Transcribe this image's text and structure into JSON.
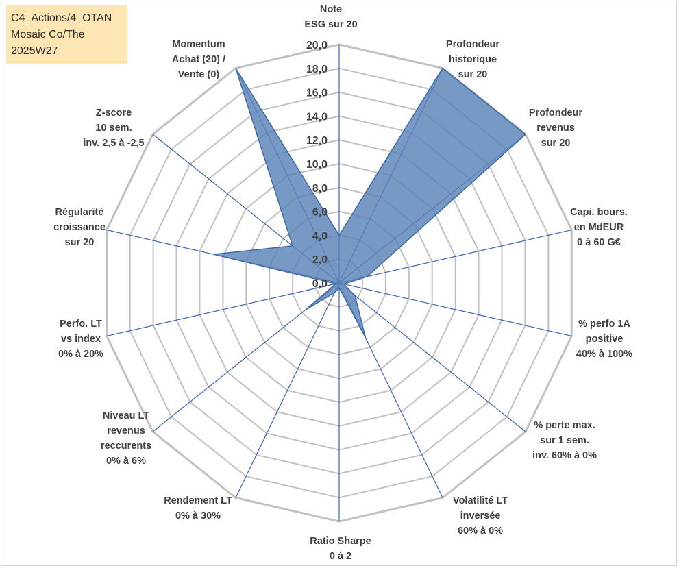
{
  "title_lines": [
    "C4_Actions/4_OTAN",
    "Mosaic Co/The",
    "2025W27"
  ],
  "colors": {
    "fill": "#5b83b8",
    "stroke": "#3e69a8",
    "grid": "#c0c0c0",
    "spoke": "#3864b4",
    "title_bg": "#fde6b4"
  },
  "chart_data": {
    "type": "radar",
    "r_range": [
      0,
      20
    ],
    "r_ticks": [
      "0,0",
      "2,0",
      "4,0",
      "6,0",
      "8,0",
      "10,0",
      "12,0",
      "14,0",
      "16,0",
      "18,0",
      "20,0"
    ],
    "grid": true,
    "axes": [
      {
        "lines": [
          "Note",
          "ESG sur 20"
        ]
      },
      {
        "lines": [
          "Profondeur",
          "historique",
          "sur 20"
        ]
      },
      {
        "lines": [
          "Profondeur",
          "revenus",
          "sur 20"
        ]
      },
      {
        "lines": [
          "Capi. bours.",
          "en MdEUR",
          "0 à 60 G€"
        ]
      },
      {
        "lines": [
          "% perfo 1A",
          "positive",
          "40% à 100%"
        ]
      },
      {
        "lines": [
          "% perte max.",
          "sur 1 sem.",
          "inv. 60% à 0%"
        ]
      },
      {
        "lines": [
          "Volatilité LT",
          "inversée",
          "60% à 0%"
        ]
      },
      {
        "lines": [
          "Ratio Sharpe",
          "0 à 2"
        ]
      },
      {
        "lines": [
          "Rendement LT",
          "0% à 30%"
        ]
      },
      {
        "lines": [
          "Niveau LT",
          "revenus",
          "reccurents",
          "0% à 6%"
        ]
      },
      {
        "lines": [
          "Perfo. LT",
          "vs index",
          "0% à 20%"
        ]
      },
      {
        "lines": [
          "Régularité",
          "croissance",
          "sur 20"
        ]
      },
      {
        "lines": [
          "Z-score",
          "10 sem.",
          "inv. 2,5 à -2,5"
        ]
      },
      {
        "lines": [
          "Momentum",
          "Achat (20) /",
          "Vente (0)"
        ]
      }
    ],
    "values": [
      4.0,
      20.0,
      20.0,
      2.4,
      0.4,
      1.7,
      5.1,
      0.4,
      0.9,
      3.6,
      0.3,
      10.8,
      5.0,
      20.0
    ]
  }
}
